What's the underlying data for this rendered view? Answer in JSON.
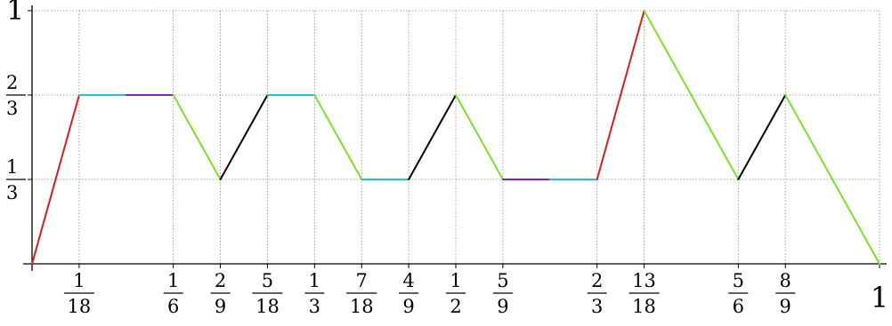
{
  "chart_data": {
    "type": "line",
    "title": "",
    "xlabel": "",
    "ylabel": "",
    "xlim": [
      0,
      1
    ],
    "ylim": [
      0,
      1
    ],
    "grid": true,
    "x_ticks": [
      {
        "value": 0.05556,
        "num": "1",
        "den": "18"
      },
      {
        "value": 0.16667,
        "num": "1",
        "den": "6"
      },
      {
        "value": 0.22222,
        "num": "2",
        "den": "9"
      },
      {
        "value": 0.27778,
        "num": "5",
        "den": "18"
      },
      {
        "value": 0.33333,
        "num": "1",
        "den": "3"
      },
      {
        "value": 0.38889,
        "num": "7",
        "den": "18"
      },
      {
        "value": 0.44444,
        "num": "4",
        "den": "9"
      },
      {
        "value": 0.5,
        "num": "1",
        "den": "2"
      },
      {
        "value": 0.55556,
        "num": "5",
        "den": "9"
      },
      {
        "value": 0.66667,
        "num": "2",
        "den": "3"
      },
      {
        "value": 0.72222,
        "num": "13",
        "den": "18"
      },
      {
        "value": 0.83333,
        "num": "5",
        "den": "6"
      },
      {
        "value": 0.88889,
        "num": "8",
        "den": "9"
      },
      {
        "value": 1,
        "num": "1",
        "den": ""
      }
    ],
    "y_ticks": [
      {
        "value": 0.33333,
        "num": "1",
        "den": "3"
      },
      {
        "value": 0.66667,
        "num": "2",
        "den": "3"
      },
      {
        "value": 1,
        "num": "1",
        "den": ""
      }
    ],
    "colors": {
      "red": "#d62020",
      "cyan": "#22c3d8",
      "purple": "#7a22c8",
      "green": "#7ee02a",
      "black": "#000000"
    },
    "segments": [
      {
        "x": [
          0,
          0.05556
        ],
        "y": [
          0,
          0.66667
        ],
        "color": "red"
      },
      {
        "x": [
          0.05556,
          0.11111
        ],
        "y": [
          0.66667,
          0.66667
        ],
        "color": "cyan"
      },
      {
        "x": [
          0.11111,
          0.16667
        ],
        "y": [
          0.66667,
          0.66667
        ],
        "color": "purple"
      },
      {
        "x": [
          0.16667,
          0.22222
        ],
        "y": [
          0.66667,
          0.33333
        ],
        "color": "green"
      },
      {
        "x": [
          0.22222,
          0.27778
        ],
        "y": [
          0.33333,
          0.66667
        ],
        "color": "black"
      },
      {
        "x": [
          0.27778,
          0.33333
        ],
        "y": [
          0.66667,
          0.66667
        ],
        "color": "cyan"
      },
      {
        "x": [
          0.33333,
          0.38889
        ],
        "y": [
          0.66667,
          0.33333
        ],
        "color": "green"
      },
      {
        "x": [
          0.38889,
          0.44444
        ],
        "y": [
          0.33333,
          0.33333
        ],
        "color": "cyan"
      },
      {
        "x": [
          0.44444,
          0.5
        ],
        "y": [
          0.33333,
          0.66667
        ],
        "color": "black"
      },
      {
        "x": [
          0.5,
          0.55556
        ],
        "y": [
          0.66667,
          0.33333
        ],
        "color": "green"
      },
      {
        "x": [
          0.55556,
          0.61111
        ],
        "y": [
          0.33333,
          0.33333
        ],
        "color": "purple"
      },
      {
        "x": [
          0.61111,
          0.66667
        ],
        "y": [
          0.33333,
          0.33333
        ],
        "color": "cyan"
      },
      {
        "x": [
          0.66667,
          0.72222
        ],
        "y": [
          0.33333,
          1
        ],
        "color": "red"
      },
      {
        "x": [
          0.72222,
          0.83333
        ],
        "y": [
          1,
          0.33333
        ],
        "color": "green"
      },
      {
        "x": [
          0.83333,
          0.88889
        ],
        "y": [
          0.33333,
          0.66667
        ],
        "color": "black"
      },
      {
        "x": [
          0.88889,
          1
        ],
        "y": [
          0.66667,
          0
        ],
        "color": "green"
      }
    ]
  }
}
